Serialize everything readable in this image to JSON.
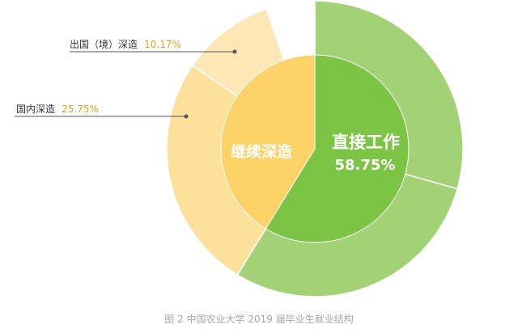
{
  "chart_data": {
    "type": "pie",
    "inner_ring": [
      {
        "name": "继续深造",
        "value": 41.25,
        "color": "#fdd368"
      },
      {
        "name": "直接工作",
        "value": 58.75,
        "color": "#7cc443"
      }
    ],
    "outer_ring": [
      {
        "name": "出国（境）深造",
        "value": 10.17,
        "color": "#fde7b5",
        "label_name": "出国（境）深造",
        "label_pct": "10.17%"
      },
      {
        "name": "国内深造",
        "value": 25.75,
        "color": "#fde19a",
        "label_name": "国内深造",
        "label_pct": "25.75%"
      },
      {
        "name": "直接工作",
        "value": 58.75,
        "color": "#a3d276"
      }
    ],
    "center_labels": {
      "further_study": "继续深造",
      "work": "直接工作",
      "work_pct": "58.75%"
    },
    "caption": "图 2  中国农业大学 2019 届毕业生就业结构"
  }
}
